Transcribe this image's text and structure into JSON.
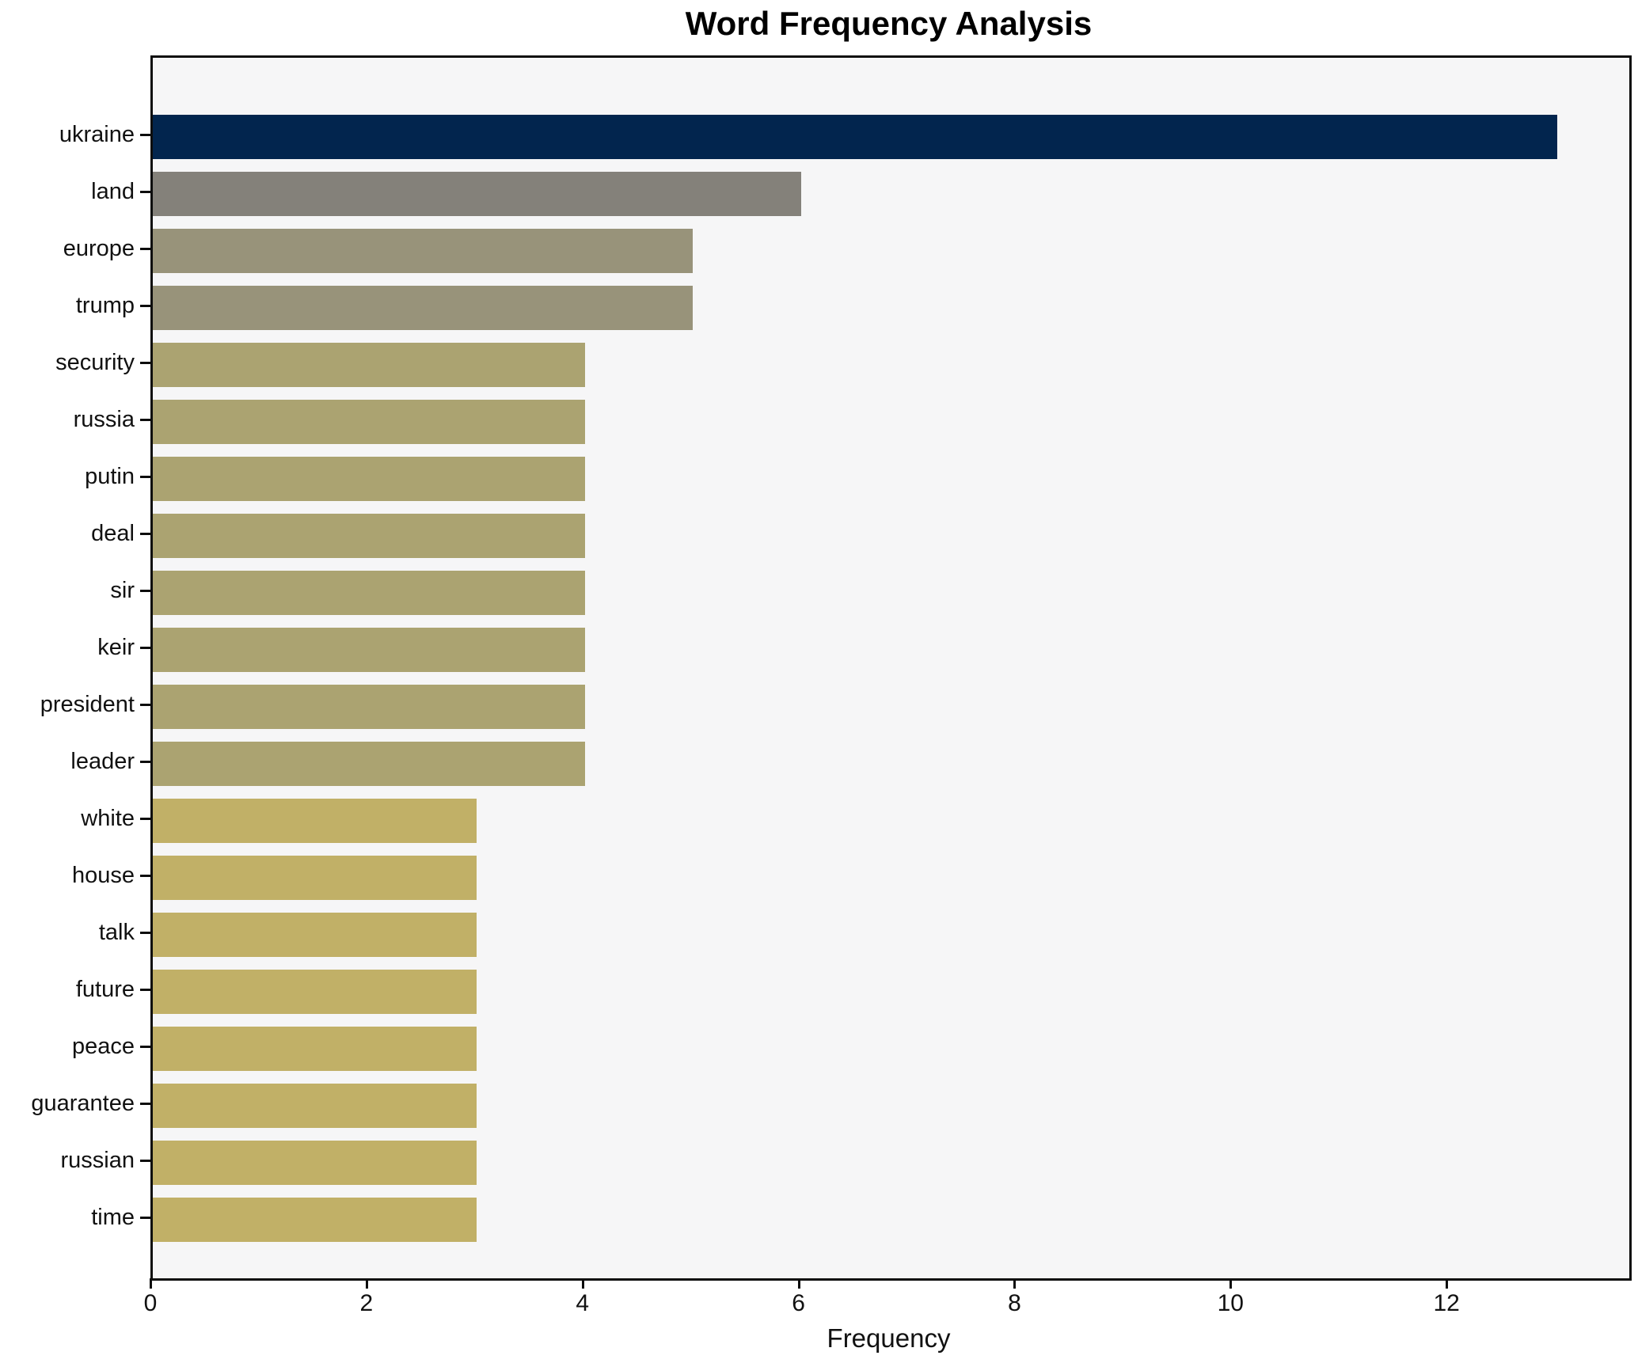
{
  "title": "Word Frequency Analysis",
  "chart_data": {
    "type": "bar",
    "orientation": "horizontal",
    "title": "Word Frequency Analysis",
    "xlabel": "Frequency",
    "ylabel": "",
    "categories": [
      "ukraine",
      "land",
      "europe",
      "trump",
      "security",
      "russia",
      "putin",
      "deal",
      "sir",
      "keir",
      "president",
      "leader",
      "white",
      "house",
      "talk",
      "future",
      "peace",
      "guarantee",
      "russian",
      "time"
    ],
    "values": [
      13,
      6,
      5,
      5,
      4,
      4,
      4,
      4,
      4,
      4,
      4,
      4,
      3,
      3,
      3,
      3,
      3,
      3,
      3,
      3
    ],
    "bar_colors": [
      "#02254e",
      "#84817a",
      "#98937a",
      "#98937a",
      "#aba371",
      "#aba371",
      "#aba371",
      "#aba371",
      "#aba371",
      "#aba371",
      "#aba371",
      "#aba371",
      "#c1b067",
      "#c1b067",
      "#c1b067",
      "#c1b067",
      "#c1b067",
      "#c1b067",
      "#c1b067",
      "#c1b067"
    ],
    "xlim": [
      0,
      13.67
    ],
    "xticks": [
      0,
      2,
      4,
      6,
      8,
      10,
      12
    ],
    "grid": false,
    "legend": null,
    "plot_background": "#f6f6f7",
    "outer_background": "#ffffff"
  }
}
